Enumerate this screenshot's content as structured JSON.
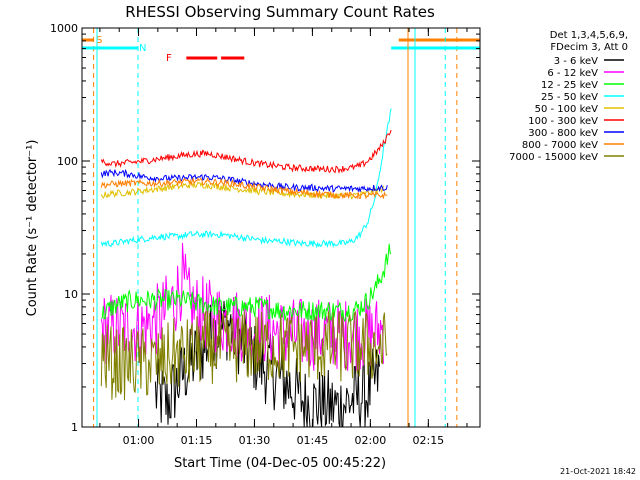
{
  "chart_data": {
    "type": "line",
    "title": "RHESSI Observing Summary Count Rates",
    "xlabel": "Start Time (04-Dec-05 00:45:22)",
    "ylabel": "Count Rate (s⁻¹ detector⁻¹)",
    "yscale": "log",
    "ylim": [
      1,
      1000
    ],
    "xlim_minutes": [
      0,
      103
    ],
    "y_ticks": [
      {
        "value": 1,
        "label": "1"
      },
      {
        "value": 10,
        "label": "10"
      },
      {
        "value": 100,
        "label": "100"
      },
      {
        "value": 1000,
        "label": "1000"
      }
    ],
    "x_ticks": [
      {
        "t": 14.63,
        "label": "01:00"
      },
      {
        "t": 29.63,
        "label": "01:15"
      },
      {
        "t": 44.63,
        "label": "01:30"
      },
      {
        "t": 59.63,
        "label": "01:45"
      },
      {
        "t": 74.63,
        "label": "02:00"
      },
      {
        "t": 89.63,
        "label": "02:15"
      }
    ],
    "legend": {
      "placement": "right",
      "header": [
        "Det 1,3,4,5,6,9,",
        "FDecim 3, Att 0"
      ]
    },
    "series": [
      {
        "name": "3 - 6 keV",
        "color": "#000000",
        "points": [
          [
            19,
            1.8
          ],
          [
            22,
            1.5
          ],
          [
            26,
            2.5
          ],
          [
            30,
            3.5
          ],
          [
            34,
            5
          ],
          [
            38,
            6
          ],
          [
            42,
            4
          ],
          [
            46,
            3
          ],
          [
            50,
            2.5
          ],
          [
            54,
            2
          ],
          [
            58,
            1.5
          ],
          [
            62,
            1.5
          ],
          [
            66,
            1.4
          ],
          [
            70,
            1.6
          ],
          [
            74,
            1.8
          ],
          [
            77,
            2.5
          ]
        ]
      },
      {
        "name": "6 - 12 keV",
        "color": "#ff00ff",
        "points": [
          [
            5,
            5.5
          ],
          [
            10,
            5.5
          ],
          [
            15,
            5.5
          ],
          [
            20,
            6.5
          ],
          [
            24,
            9
          ],
          [
            26,
            13
          ],
          [
            28,
            8
          ],
          [
            32,
            7
          ],
          [
            36,
            6.5
          ],
          [
            40,
            6
          ],
          [
            44,
            5.5
          ],
          [
            48,
            5.5
          ],
          [
            52,
            5
          ],
          [
            56,
            5
          ],
          [
            60,
            5
          ],
          [
            64,
            5
          ],
          [
            68,
            5
          ],
          [
            72,
            5
          ],
          [
            75,
            5
          ],
          [
            78,
            5.5
          ]
        ]
      },
      {
        "name": "12 - 25 keV",
        "color": "#00ff00",
        "points": [
          [
            5,
            7
          ],
          [
            8,
            8
          ],
          [
            10,
            8.5
          ],
          [
            14,
            9
          ],
          [
            18,
            9
          ],
          [
            22,
            9
          ],
          [
            26,
            9
          ],
          [
            30,
            8.5
          ],
          [
            36,
            8
          ],
          [
            40,
            8
          ],
          [
            46,
            8
          ],
          [
            52,
            7.5
          ],
          [
            58,
            7.5
          ],
          [
            64,
            7.5
          ],
          [
            70,
            7.5
          ],
          [
            72,
            8
          ],
          [
            74,
            9
          ],
          [
            76,
            11
          ],
          [
            78,
            15
          ],
          [
            80,
            22
          ]
        ]
      },
      {
        "name": "25 - 50 keV",
        "color": "#00ffff",
        "points": [
          [
            5,
            24
          ],
          [
            8,
            24
          ],
          [
            12,
            25
          ],
          [
            16,
            26
          ],
          [
            20,
            27
          ],
          [
            24,
            27
          ],
          [
            28,
            28
          ],
          [
            32,
            28
          ],
          [
            36,
            28
          ],
          [
            40,
            27
          ],
          [
            44,
            26
          ],
          [
            48,
            25
          ],
          [
            52,
            25
          ],
          [
            56,
            24
          ],
          [
            60,
            24
          ],
          [
            64,
            24
          ],
          [
            68,
            24
          ],
          [
            70,
            25
          ],
          [
            72,
            28
          ],
          [
            74,
            35
          ],
          [
            76,
            55
          ],
          [
            78,
            120
          ],
          [
            80,
            240
          ]
        ]
      },
      {
        "name": "50 - 100 keV",
        "color": "#e0c000",
        "points": [
          [
            5,
            55
          ],
          [
            8,
            57
          ],
          [
            12,
            58
          ],
          [
            16,
            60
          ],
          [
            20,
            62
          ],
          [
            24,
            64
          ],
          [
            28,
            66
          ],
          [
            32,
            66
          ],
          [
            36,
            64
          ],
          [
            40,
            62
          ],
          [
            46,
            59
          ],
          [
            52,
            57
          ],
          [
            58,
            56
          ],
          [
            64,
            55
          ],
          [
            70,
            55
          ],
          [
            74,
            57
          ],
          [
            76,
            60
          ],
          [
            78,
            62
          ]
        ]
      },
      {
        "name": "100 - 300 keV",
        "color": "#ff0000",
        "points": [
          [
            5,
            100
          ],
          [
            8,
            95
          ],
          [
            12,
            97
          ],
          [
            16,
            100
          ],
          [
            20,
            104
          ],
          [
            24,
            108
          ],
          [
            28,
            112
          ],
          [
            32,
            114
          ],
          [
            34,
            112
          ],
          [
            38,
            106
          ],
          [
            42,
            100
          ],
          [
            46,
            95
          ],
          [
            50,
            92
          ],
          [
            54,
            89
          ],
          [
            58,
            88
          ],
          [
            62,
            87
          ],
          [
            66,
            87
          ],
          [
            70,
            89
          ],
          [
            72,
            92
          ],
          [
            74,
            100
          ],
          [
            76,
            115
          ],
          [
            78,
            135
          ],
          [
            80,
            175
          ]
        ]
      },
      {
        "name": "300 - 800 keV",
        "color": "#0000ff",
        "points": [
          [
            5,
            80
          ],
          [
            8,
            82
          ],
          [
            12,
            80
          ],
          [
            16,
            76
          ],
          [
            20,
            74
          ],
          [
            24,
            74
          ],
          [
            28,
            75
          ],
          [
            32,
            76
          ],
          [
            36,
            74
          ],
          [
            40,
            71
          ],
          [
            44,
            68
          ],
          [
            48,
            66
          ],
          [
            52,
            64
          ],
          [
            56,
            63
          ],
          [
            60,
            63
          ],
          [
            64,
            62
          ],
          [
            68,
            62
          ],
          [
            72,
            62
          ],
          [
            76,
            63
          ],
          [
            79,
            63
          ]
        ]
      },
      {
        "name": "800 - 7000 keV",
        "color": "#ff8000",
        "points": [
          [
            5,
            66
          ],
          [
            8,
            67
          ],
          [
            12,
            68
          ],
          [
            16,
            68
          ],
          [
            20,
            68
          ],
          [
            24,
            69
          ],
          [
            28,
            70
          ],
          [
            32,
            70
          ],
          [
            36,
            69
          ],
          [
            40,
            67
          ],
          [
            44,
            64
          ],
          [
            48,
            62
          ],
          [
            52,
            60
          ],
          [
            56,
            58
          ],
          [
            60,
            57
          ],
          [
            64,
            56
          ],
          [
            68,
            55
          ],
          [
            72,
            55
          ],
          [
            76,
            55
          ],
          [
            79,
            55
          ]
        ]
      },
      {
        "name": "7000 - 15000 keV",
        "color": "#808000",
        "points": [
          [
            5,
            3.5
          ],
          [
            8,
            3
          ],
          [
            12,
            3
          ],
          [
            16,
            3
          ],
          [
            20,
            3
          ],
          [
            24,
            3.5
          ],
          [
            28,
            3.5
          ],
          [
            32,
            4
          ],
          [
            36,
            4
          ],
          [
            40,
            4
          ],
          [
            44,
            4
          ],
          [
            48,
            4
          ],
          [
            52,
            4
          ],
          [
            56,
            4
          ],
          [
            60,
            4
          ],
          [
            64,
            4
          ],
          [
            68,
            4
          ],
          [
            72,
            4
          ],
          [
            76,
            4
          ],
          [
            79,
            4
          ]
        ]
      }
    ],
    "markers": {
      "saa": {
        "label": "S",
        "color": "#ff8000",
        "start": 3,
        "end": 97
      },
      "night": {
        "label": "N",
        "color": "#00ffff",
        "start": 14.5,
        "end": 94
      },
      "flare": {
        "label": "F",
        "color": "#ff0000",
        "segments": [
          [
            27,
            35
          ],
          [
            36,
            42
          ]
        ]
      }
    }
  },
  "footer": {
    "date": "21-Oct-2021 18:42"
  }
}
